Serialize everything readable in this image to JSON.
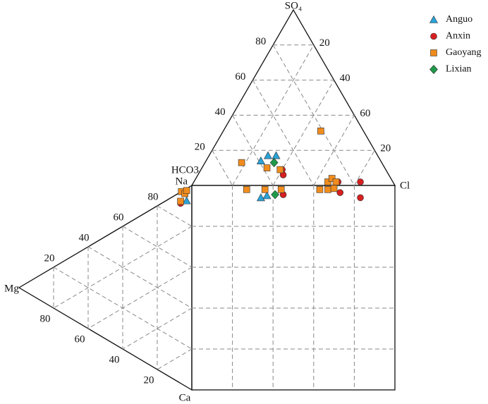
{
  "chart_data": {
    "type": "ternary",
    "vertices": {
      "so4": "SO₄",
      "hco3": "HCO3",
      "cl": "Cl",
      "na": "Na",
      "mg": "Mg",
      "ca": "Ca"
    },
    "anion_so4_ticks": [
      20,
      40,
      60,
      80
    ],
    "anion_cl_ticks": [
      20,
      40,
      60,
      {
        "value": 80,
        "label": "20"
      }
    ],
    "cation_na_ticks": [
      80,
      60,
      40,
      20
    ],
    "cation_mg_ticks": [
      80,
      60,
      40,
      20
    ],
    "series": [
      {
        "name": "Anguo",
        "color": "#2aa3d8",
        "marker": "triangle",
        "so4": [
          14,
          17,
          17
        ],
        "cl": [
          27,
          29,
          33
        ],
        "square_x": [
          34,
          37
        ],
        "square_y": [
          94,
          95
        ],
        "na": [
          91
        ],
        "mg": [
          3
        ]
      },
      {
        "name": "Anxin",
        "color": "#d62020",
        "marker": "circle",
        "so4": [
          9,
          6,
          2,
          2
        ],
        "cl": [
          40,
          42,
          71,
          82
        ],
        "square_x": [
          45,
          73,
          83
        ],
        "square_y": [
          95.5,
          96.5,
          94
        ],
        "na": [
          88
        ],
        "mg": [
          6.5
        ]
      },
      {
        "name": "Gaoyang",
        "color": "#f08c1e",
        "marker": "square",
        "so4": [
          13,
          10,
          9,
          31,
          2,
          4,
          2
        ],
        "cl": [
          18,
          32,
          39,
          48,
          66,
          67,
          70
        ],
        "square_x": [
          27,
          36,
          44,
          63,
          67,
          70
        ],
        "square_y": [
          98,
          98,
          98,
          98,
          98,
          98.5
        ],
        "na": [
          94,
          94,
          89,
          96
        ],
        "mg": [
          6,
          4,
          6.5,
          3
        ]
      },
      {
        "name": "Lixian",
        "color": "#1f9a4a",
        "marker": "diamond",
        "so4": [
          13
        ],
        "cl": [
          34
        ],
        "square_x": [
          41
        ],
        "square_y": [
          95.5
        ],
        "na": [],
        "mg": []
      }
    ]
  }
}
